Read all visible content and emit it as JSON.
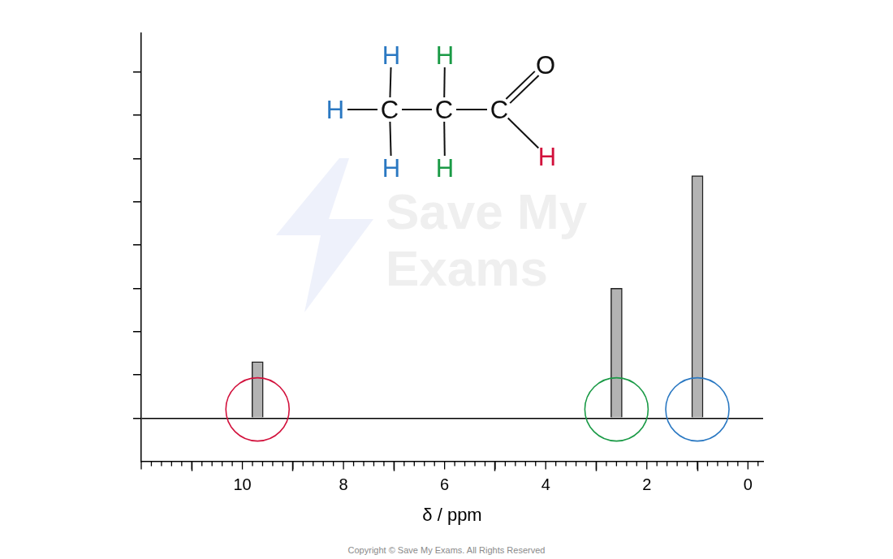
{
  "chart_data": {
    "type": "bar",
    "x_label": "δ / ppm",
    "x": [
      9.7,
      2.6,
      1.0
    ],
    "series": [
      {
        "type": "bar",
        "color": "#b3b3b3",
        "values": [
          1.3,
          3,
          5.6
        ]
      },
      {
        "type": "scatter",
        "marker": "circle",
        "colors": [
          "#d2113c",
          "#1a9a46",
          "#2a78c2"
        ],
        "values": [
          0.2,
          0.2,
          0.2
        ]
      }
    ],
    "xlim": [
      12,
      -0.3
    ],
    "xticks": [
      0,
      2,
      4,
      6,
      8,
      10
    ],
    "ylim": [
      -1,
      8.9
    ],
    "yticks": [
      0,
      1,
      2,
      3,
      4,
      5,
      6,
      7,
      8
    ],
    "tick_labels": "x",
    "grid": false
  },
  "structure": {
    "atoms": [
      {
        "label": "H",
        "color": "#2a78c2"
      },
      {
        "label": "H",
        "color": "#2a78c2"
      },
      {
        "label": "H",
        "color": "#2a78c2"
      },
      {
        "label": "C",
        "color": "#111111"
      },
      {
        "label": "H",
        "color": "#1a9a46"
      },
      {
        "label": "H",
        "color": "#1a9a46"
      },
      {
        "label": "C",
        "color": "#111111"
      },
      {
        "label": "C",
        "color": "#111111"
      },
      {
        "label": "O",
        "color": "#111111"
      },
      {
        "label": "H",
        "color": "#d2113c"
      }
    ]
  },
  "watermark": [
    "Save My",
    "Exams"
  ],
  "footer": "Copyright © Save My Exams. All Rights Reserved"
}
